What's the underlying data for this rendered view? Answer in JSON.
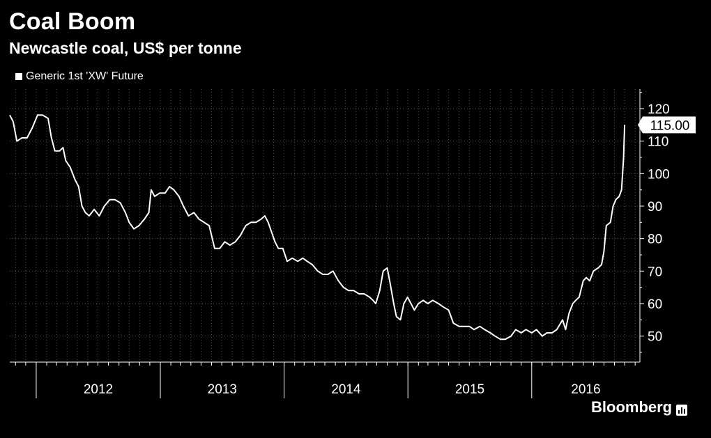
{
  "title": "Coal Boom",
  "subtitle": "Newcastle coal, US$ per tonne",
  "brand": "Bloomberg",
  "colors": {
    "background": "#000000",
    "line": "#ffffff",
    "grid": "#5a5a5a"
  },
  "chart_data": {
    "type": "line",
    "title": "Coal Boom",
    "subtitle": "Newcastle coal, US$ per tonne",
    "grid": true,
    "legend": "top-left",
    "ylim": [
      42,
      126
    ],
    "yticks": [
      50,
      60,
      70,
      80,
      90,
      100,
      110,
      120
    ],
    "ytick_labels": [
      "50",
      "60",
      "70",
      "80",
      "90",
      "100",
      "110",
      "120"
    ],
    "xlim": [
      "2011-10-15",
      "2016-11-15"
    ],
    "year_labels": [
      "2012",
      "2013",
      "2014",
      "2015",
      "2016"
    ],
    "last_value_label": "115.00",
    "series": [
      {
        "name": "Generic 1st 'XW' Future",
        "points": [
          [
            "2011-10-15",
            118
          ],
          [
            "2011-10-25",
            116
          ],
          [
            "2011-11-05",
            110
          ],
          [
            "2011-11-20",
            111
          ],
          [
            "2011-12-05",
            111
          ],
          [
            "2011-12-20",
            114
          ],
          [
            "2012-01-05",
            118
          ],
          [
            "2012-01-20",
            118
          ],
          [
            "2012-02-05",
            117
          ],
          [
            "2012-02-15",
            111
          ],
          [
            "2012-02-25",
            107
          ],
          [
            "2012-03-10",
            107
          ],
          [
            "2012-03-20",
            108
          ],
          [
            "2012-03-28",
            104
          ],
          [
            "2012-04-10",
            102
          ],
          [
            "2012-04-25",
            98
          ],
          [
            "2012-05-05",
            96
          ],
          [
            "2012-05-15",
            90
          ],
          [
            "2012-05-25",
            88
          ],
          [
            "2012-06-05",
            87
          ],
          [
            "2012-06-20",
            89
          ],
          [
            "2012-07-05",
            87
          ],
          [
            "2012-07-20",
            90
          ],
          [
            "2012-08-05",
            92
          ],
          [
            "2012-08-20",
            92
          ],
          [
            "2012-09-05",
            91
          ],
          [
            "2012-09-20",
            88
          ],
          [
            "2012-10-01",
            85
          ],
          [
            "2012-10-15",
            83
          ],
          [
            "2012-10-30",
            84
          ],
          [
            "2012-11-15",
            86
          ],
          [
            "2012-11-28",
            88
          ],
          [
            "2012-12-05",
            95
          ],
          [
            "2012-12-15",
            93
          ],
          [
            "2012-12-30",
            94
          ],
          [
            "2013-01-15",
            94
          ],
          [
            "2013-01-28",
            96
          ],
          [
            "2013-02-10",
            95
          ],
          [
            "2013-02-25",
            93
          ],
          [
            "2013-03-10",
            90
          ],
          [
            "2013-03-25",
            87
          ],
          [
            "2013-04-10",
            88
          ],
          [
            "2013-04-25",
            86
          ],
          [
            "2013-05-10",
            85
          ],
          [
            "2013-05-25",
            84
          ],
          [
            "2013-06-10",
            77
          ],
          [
            "2013-06-25",
            77
          ],
          [
            "2013-07-10",
            79
          ],
          [
            "2013-07-25",
            78
          ],
          [
            "2013-08-10",
            79
          ],
          [
            "2013-08-25",
            81
          ],
          [
            "2013-09-10",
            84
          ],
          [
            "2013-09-25",
            85
          ],
          [
            "2013-10-10",
            85
          ],
          [
            "2013-10-25",
            86
          ],
          [
            "2013-11-05",
            87
          ],
          [
            "2013-11-15",
            85
          ],
          [
            "2013-11-25",
            82
          ],
          [
            "2013-12-05",
            79
          ],
          [
            "2013-12-15",
            77
          ],
          [
            "2013-12-28",
            77
          ],
          [
            "2014-01-10",
            73
          ],
          [
            "2014-01-25",
            74
          ],
          [
            "2014-02-10",
            73
          ],
          [
            "2014-02-25",
            74
          ],
          [
            "2014-03-10",
            73
          ],
          [
            "2014-03-25",
            72
          ],
          [
            "2014-04-10",
            70
          ],
          [
            "2014-04-25",
            69
          ],
          [
            "2014-05-10",
            69
          ],
          [
            "2014-05-25",
            70
          ],
          [
            "2014-06-10",
            67
          ],
          [
            "2014-06-25",
            65
          ],
          [
            "2014-07-10",
            64
          ],
          [
            "2014-07-25",
            64
          ],
          [
            "2014-08-10",
            63
          ],
          [
            "2014-08-25",
            63
          ],
          [
            "2014-09-10",
            62
          ],
          [
            "2014-09-20",
            61
          ],
          [
            "2014-09-28",
            60
          ],
          [
            "2014-10-10",
            64
          ],
          [
            "2014-10-20",
            70
          ],
          [
            "2014-11-01",
            71
          ],
          [
            "2014-11-10",
            66
          ],
          [
            "2014-11-20",
            60
          ],
          [
            "2014-11-28",
            56
          ],
          [
            "2014-12-10",
            55
          ],
          [
            "2014-12-20",
            60
          ],
          [
            "2014-12-31",
            62
          ],
          [
            "2015-01-10",
            60
          ],
          [
            "2015-01-20",
            58
          ],
          [
            "2015-02-01",
            60
          ],
          [
            "2015-02-15",
            61
          ],
          [
            "2015-03-01",
            60
          ],
          [
            "2015-03-15",
            61
          ],
          [
            "2015-04-01",
            60
          ],
          [
            "2015-04-15",
            59
          ],
          [
            "2015-05-01",
            58
          ],
          [
            "2015-05-15",
            54
          ],
          [
            "2015-06-01",
            53
          ],
          [
            "2015-06-15",
            53
          ],
          [
            "2015-07-01",
            53
          ],
          [
            "2015-07-15",
            52
          ],
          [
            "2015-08-01",
            53
          ],
          [
            "2015-08-15",
            52
          ],
          [
            "2015-09-01",
            51
          ],
          [
            "2015-09-15",
            50
          ],
          [
            "2015-10-01",
            49
          ],
          [
            "2015-10-15",
            49
          ],
          [
            "2015-11-01",
            50
          ],
          [
            "2015-11-15",
            52
          ],
          [
            "2015-12-01",
            51
          ],
          [
            "2015-12-15",
            52
          ],
          [
            "2016-01-01",
            51
          ],
          [
            "2016-01-15",
            52
          ],
          [
            "2016-02-01",
            50
          ],
          [
            "2016-02-15",
            51
          ],
          [
            "2016-03-01",
            51
          ],
          [
            "2016-03-15",
            52
          ],
          [
            "2016-04-01",
            55
          ],
          [
            "2016-04-10",
            52
          ],
          [
            "2016-04-20",
            57
          ],
          [
            "2016-05-01",
            60
          ],
          [
            "2016-05-10",
            61
          ],
          [
            "2016-05-20",
            62
          ],
          [
            "2016-06-01",
            67
          ],
          [
            "2016-06-10",
            68
          ],
          [
            "2016-06-20",
            67
          ],
          [
            "2016-07-01",
            70
          ],
          [
            "2016-07-15",
            71
          ],
          [
            "2016-07-25",
            72
          ],
          [
            "2016-08-01",
            76
          ],
          [
            "2016-08-08",
            84
          ],
          [
            "2016-08-20",
            85
          ],
          [
            "2016-08-28",
            90
          ],
          [
            "2016-09-05",
            92
          ],
          [
            "2016-09-15",
            93
          ],
          [
            "2016-09-22",
            95
          ],
          [
            "2016-09-28",
            105
          ],
          [
            "2016-10-01",
            115
          ]
        ]
      }
    ]
  }
}
